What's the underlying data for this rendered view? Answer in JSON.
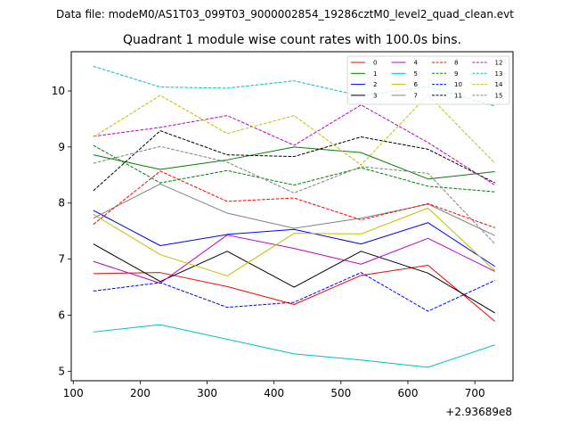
{
  "suptitle": "Data file: modeM0/AS1T03_099T03_9000002854_19286cztM0_level2_quad_clean.evt",
  "chart_data": {
    "type": "line",
    "title": "Quadrant 1 module wise count rates with 100.0s bins.",
    "xlabel": "",
    "ylabel": "",
    "x_offset_label": "+2.93689e8",
    "x": [
      130,
      230,
      330,
      430,
      530,
      630,
      730
    ],
    "xlim": [
      97,
      757
    ],
    "ylim": [
      4.83,
      10.7
    ],
    "x_ticks": [
      100,
      200,
      300,
      400,
      500,
      600,
      700
    ],
    "x_tick_labels": [
      "100",
      "200",
      "300",
      "400",
      "500",
      "600",
      "700"
    ],
    "y_ticks": [
      5,
      6,
      7,
      8,
      9,
      10
    ],
    "y_tick_labels": [
      "5",
      "6",
      "7",
      "8",
      "9",
      "10"
    ],
    "grid": false,
    "legend_position": "top-right",
    "legend_columns": 4,
    "series": [
      {
        "name": "0",
        "color": "#ff0000",
        "dash": "solid",
        "values": [
          6.74,
          6.76,
          6.51,
          6.19,
          6.71,
          6.89,
          5.89
        ]
      },
      {
        "name": "1",
        "color": "#008000",
        "dash": "solid",
        "values": [
          8.86,
          8.6,
          8.77,
          9.0,
          8.9,
          8.43,
          8.56
        ]
      },
      {
        "name": "2",
        "color": "#0000ff",
        "dash": "solid",
        "values": [
          7.87,
          7.24,
          7.44,
          7.53,
          7.27,
          7.65,
          6.87
        ]
      },
      {
        "name": "3",
        "color": "#000000",
        "dash": "solid",
        "values": [
          7.27,
          6.6,
          7.14,
          6.5,
          7.14,
          6.75,
          6.04
        ]
      },
      {
        "name": "4",
        "color": "#c000c0",
        "dash": "solid",
        "values": [
          6.96,
          6.57,
          7.43,
          7.19,
          6.91,
          7.37,
          6.78
        ]
      },
      {
        "name": "5",
        "color": "#00c0c0",
        "dash": "solid",
        "values": [
          5.7,
          5.83,
          5.57,
          5.31,
          5.2,
          5.07,
          5.47
        ]
      },
      {
        "name": "6",
        "color": "#c0c000",
        "dash": "solid",
        "values": [
          7.8,
          7.08,
          6.7,
          7.46,
          7.45,
          7.91,
          6.79
        ]
      },
      {
        "name": "7",
        "color": "#808080",
        "dash": "solid",
        "values": [
          7.73,
          8.34,
          7.82,
          7.55,
          7.73,
          7.98,
          7.42
        ]
      },
      {
        "name": "8",
        "color": "#ff0000",
        "dash": "dashed",
        "values": [
          7.62,
          8.57,
          8.03,
          8.09,
          7.7,
          7.99,
          7.56
        ]
      },
      {
        "name": "9",
        "color": "#008000",
        "dash": "dashed",
        "values": [
          9.03,
          8.36,
          8.58,
          8.32,
          8.63,
          8.3,
          8.2
        ]
      },
      {
        "name": "10",
        "color": "#0000ff",
        "dash": "dashed",
        "values": [
          6.43,
          6.58,
          6.14,
          6.23,
          6.76,
          6.07,
          6.62
        ]
      },
      {
        "name": "11",
        "color": "#000000",
        "dash": "dashed",
        "values": [
          8.22,
          9.29,
          8.86,
          8.83,
          9.18,
          8.96,
          8.36
        ]
      },
      {
        "name": "12",
        "color": "#c000c0",
        "dash": "dashed",
        "values": [
          9.19,
          9.35,
          9.56,
          9.03,
          9.75,
          9.08,
          8.32
        ]
      },
      {
        "name": "13",
        "color": "#00c0c0",
        "dash": "dashed",
        "values": [
          10.44,
          10.07,
          10.05,
          10.18,
          9.91,
          10.08,
          9.73
        ]
      },
      {
        "name": "14",
        "color": "#c0c000",
        "dash": "dashed",
        "values": [
          9.18,
          9.92,
          9.24,
          9.56,
          8.68,
          9.93,
          8.71
        ]
      },
      {
        "name": "15",
        "color": "#808080",
        "dash": "dashed",
        "values": [
          8.71,
          9.01,
          8.73,
          8.18,
          8.65,
          8.53,
          7.27
        ]
      }
    ]
  }
}
